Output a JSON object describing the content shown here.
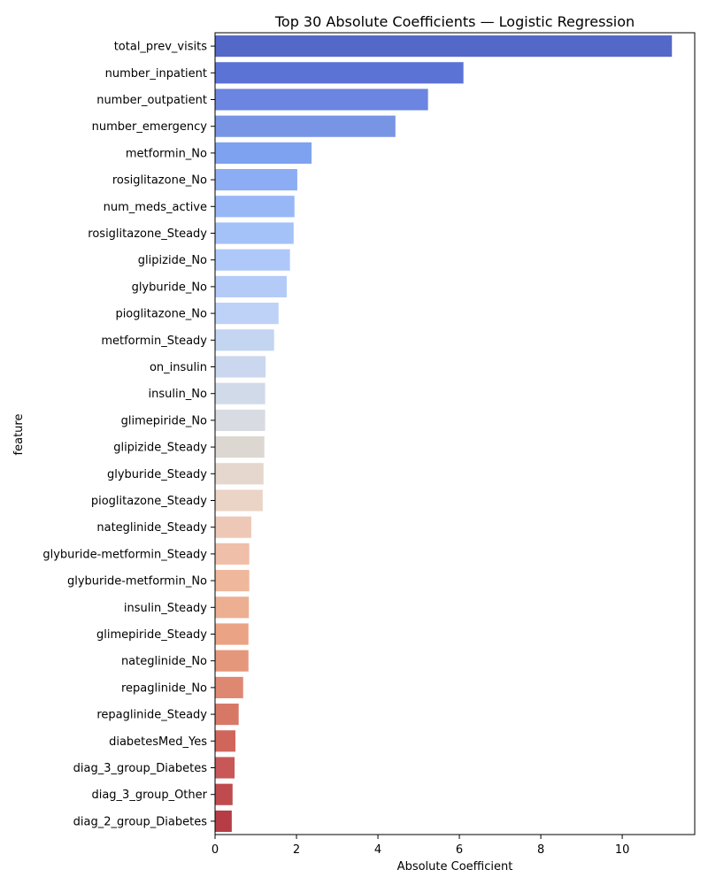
{
  "chart_data": {
    "type": "bar",
    "orientation": "horizontal",
    "title": "Top 30 Absolute Coefficients — Logistic Regression",
    "xlabel": "Absolute Coefficient",
    "ylabel": "feature",
    "xlim": [
      0,
      11.78
    ],
    "xticks": [
      0,
      2,
      4,
      6,
      8,
      10
    ],
    "xtick_labels": [
      "0",
      "2",
      "4",
      "6",
      "8",
      "10"
    ],
    "grid": false,
    "legend": "none",
    "colormap": "coolwarm",
    "categories": [
      "total_prev_visits",
      "number_inpatient",
      "number_outpatient",
      "number_emergency",
      "metformin_No",
      "rosiglitazone_No",
      "num_meds_active",
      "rosiglitazone_Steady",
      "glipizide_No",
      "glyburide_No",
      "pioglitazone_No",
      "metformin_Steady",
      "on_insulin",
      "insulin_No",
      "glimepiride_No",
      "glipizide_Steady",
      "glyburide_Steady",
      "pioglitazone_Steady",
      "nateglinide_Steady",
      "glyburide-metformin_Steady",
      "glyburide-metformin_No",
      "insulin_Steady",
      "glimepiride_Steady",
      "nateglinide_No",
      "repaglinide_No",
      "repaglinide_Steady",
      "diabetesMed_Yes",
      "diag_3_group_Diabetes",
      "diag_3_group_Other",
      "diag_2_group_Diabetes"
    ],
    "values": [
      11.22,
      6.1,
      5.23,
      4.43,
      2.37,
      2.02,
      1.95,
      1.93,
      1.84,
      1.76,
      1.56,
      1.45,
      1.24,
      1.23,
      1.23,
      1.21,
      1.19,
      1.17,
      0.89,
      0.84,
      0.84,
      0.83,
      0.82,
      0.82,
      0.69,
      0.58,
      0.5,
      0.48,
      0.43,
      0.41
    ],
    "colors": [
      "#5368c7",
      "#5b73d5",
      "#6b85e0",
      "#7895e5",
      "#7ea2ef",
      "#8cadf3",
      "#97b7f7",
      "#a4c1f8",
      "#afc8fa",
      "#b4cbf7",
      "#bdd2f6",
      "#c4d5f2",
      "#cad7ee",
      "#d1dae9",
      "#d8dce2",
      "#ddd7d2",
      "#e5d7cd",
      "#ebd3c6",
      "#eec8b6",
      "#f0bfa9",
      "#efb79c",
      "#edaf92",
      "#eaa384",
      "#e5977c",
      "#df8871",
      "#d77867",
      "#d0655b",
      "#c85858",
      "#bf4b4e",
      "#b63c45"
    ]
  }
}
